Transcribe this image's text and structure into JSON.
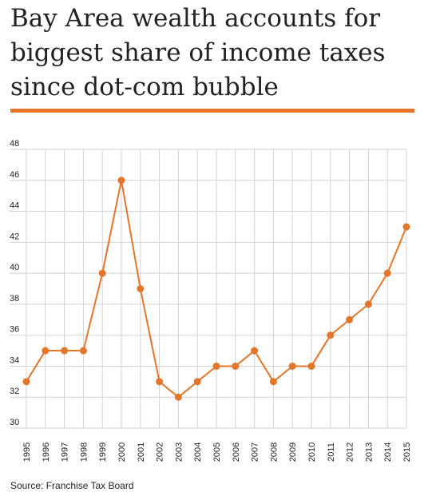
{
  "title": "Bay Area wealth accounts for biggest share of income taxes since dot-com bubble",
  "source": "Source: Franchise Tax Board",
  "colors": {
    "accent": "#e3762b",
    "grid": "#d2d2d2",
    "text": "#222222"
  },
  "chart_data": {
    "type": "line",
    "title": "Bay Area wealth accounts for biggest share of income taxes since dot-com bubble",
    "xlabel": "",
    "ylabel": "",
    "x": [
      "1995",
      "1996",
      "1997",
      "1998",
      "1999",
      "2000",
      "2001",
      "2002",
      "2003",
      "2004",
      "2005",
      "2006",
      "2007",
      "2008",
      "2009",
      "2010",
      "2011",
      "2012",
      "2013",
      "2014",
      "2015"
    ],
    "values": [
      33,
      35,
      35,
      35,
      40,
      46,
      39,
      33,
      32,
      33,
      34,
      34,
      35,
      33,
      34,
      34,
      36,
      37,
      38,
      40,
      43
    ],
    "ylim": [
      30,
      48
    ],
    "yticks": [
      30,
      32,
      34,
      36,
      38,
      40,
      42,
      44,
      46,
      48
    ],
    "grid": true,
    "legend": "none"
  }
}
